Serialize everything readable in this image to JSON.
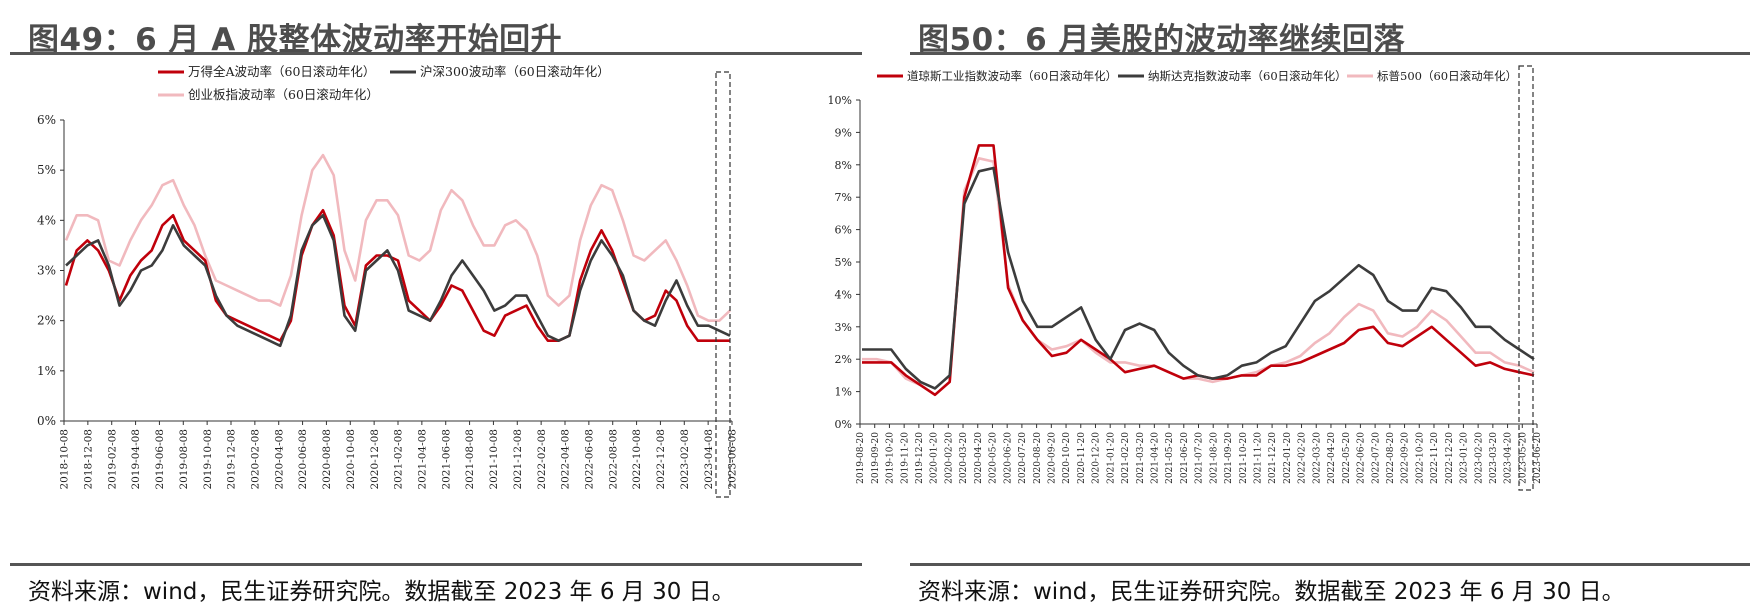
{
  "colors": {
    "red": "#c0000b",
    "dark": "#3c3c3c",
    "pink": "#f1b9be",
    "rule": "#555555"
  },
  "left": {
    "title": "图49：6 月 A 股整体波动率开始回升",
    "source": "资料来源：wind，民生证券研究院。数据截至 2023 年 6 月 30 日。",
    "chart_data": {
      "type": "line",
      "title": "",
      "xlabel": "",
      "ylabel": "",
      "ylim": [
        0,
        6
      ],
      "grid": false,
      "legend_position": "top",
      "y_ticks": [
        "0%",
        "1%",
        "2%",
        "3%",
        "4%",
        "5%",
        "6%"
      ],
      "x_tick_labels": [
        "2018-10-08",
        "2018-12-08",
        "2019-02-08",
        "2019-04-08",
        "2019-06-08",
        "2019-08-08",
        "2019-10-08",
        "2019-12-08",
        "2020-02-08",
        "2020-04-08",
        "2020-06-08",
        "2020-08-08",
        "2020-10-08",
        "2020-12-08",
        "2021-02-08",
        "2021-04-08",
        "2021-06-08",
        "2021-08-08",
        "2021-10-08",
        "2021-12-08",
        "2022-02-08",
        "2022-04-08",
        "2022-06-08",
        "2022-08-08",
        "2022-10-08",
        "2022-12-08",
        "2023-02-08",
        "2023-04-08",
        "2023-06-08"
      ],
      "highlight": "2023-06",
      "series": [
        {
          "name": "万得全A波动率（60日滚动年化）",
          "color_key": "red",
          "values": [
            2.7,
            3.4,
            3.6,
            3.4,
            3.0,
            2.4,
            2.9,
            3.2,
            3.4,
            3.9,
            4.1,
            3.6,
            3.4,
            3.2,
            2.4,
            2.1,
            2.0,
            1.9,
            1.8,
            1.7,
            1.6,
            2.0,
            3.3,
            3.9,
            4.2,
            3.7,
            2.3,
            1.9,
            3.1,
            3.3,
            3.3,
            3.2,
            2.4,
            2.2,
            2.0,
            2.3,
            2.7,
            2.6,
            2.2,
            1.8,
            1.7,
            2.1,
            2.2,
            2.3,
            1.9,
            1.6,
            1.6,
            1.7,
            2.8,
            3.4,
            3.8,
            3.4,
            2.8,
            2.2,
            2.0,
            2.1,
            2.6,
            2.4,
            1.9,
            1.6,
            1.6,
            1.6,
            1.6
          ]
        },
        {
          "name": "沪深300波动率（60日滚动年化）",
          "color_key": "dark",
          "values": [
            3.1,
            3.3,
            3.5,
            3.6,
            3.1,
            2.3,
            2.6,
            3.0,
            3.1,
            3.4,
            3.9,
            3.5,
            3.3,
            3.1,
            2.5,
            2.1,
            1.9,
            1.8,
            1.7,
            1.6,
            1.5,
            2.1,
            3.4,
            3.9,
            4.1,
            3.6,
            2.1,
            1.8,
            3.0,
            3.2,
            3.4,
            3.0,
            2.2,
            2.1,
            2.0,
            2.4,
            2.9,
            3.2,
            2.9,
            2.6,
            2.2,
            2.3,
            2.5,
            2.5,
            2.1,
            1.7,
            1.6,
            1.7,
            2.6,
            3.2,
            3.6,
            3.3,
            2.9,
            2.2,
            2.0,
            1.9,
            2.4,
            2.8,
            2.3,
            1.9,
            1.9,
            1.8,
            1.7
          ]
        },
        {
          "name": "创业板指波动率（60日滚动年化）",
          "color_key": "pink",
          "values": [
            3.6,
            4.1,
            4.1,
            4.0,
            3.2,
            3.1,
            3.6,
            4.0,
            4.3,
            4.7,
            4.8,
            4.3,
            3.9,
            3.3,
            2.8,
            2.7,
            2.6,
            2.5,
            2.4,
            2.4,
            2.3,
            2.9,
            4.1,
            5.0,
            5.3,
            4.9,
            3.4,
            2.8,
            4.0,
            4.4,
            4.4,
            4.1,
            3.3,
            3.2,
            3.4,
            4.2,
            4.6,
            4.4,
            3.9,
            3.5,
            3.5,
            3.9,
            4.0,
            3.8,
            3.3,
            2.5,
            2.3,
            2.5,
            3.6,
            4.3,
            4.7,
            4.6,
            4.0,
            3.3,
            3.2,
            3.4,
            3.6,
            3.2,
            2.7,
            2.1,
            2.0,
            2.0,
            2.2
          ]
        }
      ]
    }
  },
  "right": {
    "title": "图50：6 月美股的波动率继续回落",
    "source": "资料来源：wind，民生证券研究院。数据截至 2023 年 6 月 30 日。",
    "chart_data": {
      "type": "line",
      "title": "",
      "xlabel": "",
      "ylabel": "",
      "ylim": [
        0,
        10
      ],
      "grid": false,
      "legend_position": "top",
      "y_ticks": [
        "0%",
        "1%",
        "2%",
        "3%",
        "4%",
        "5%",
        "6%",
        "7%",
        "8%",
        "9%",
        "10%"
      ],
      "x_tick_labels": [
        "2019-08-20",
        "2019-09-20",
        "2019-10-20",
        "2019-11-20",
        "2019-12-20",
        "2020-01-20",
        "2020-02-20",
        "2020-03-20",
        "2020-04-20",
        "2020-05-20",
        "2020-06-20",
        "2020-07-20",
        "2020-08-20",
        "2020-09-20",
        "2020-10-20",
        "2020-11-20",
        "2020-12-20",
        "2021-01-20",
        "2021-02-20",
        "2021-03-20",
        "2021-04-20",
        "2021-05-20",
        "2021-06-20",
        "2021-07-20",
        "2021-08-20",
        "2021-09-20",
        "2021-10-20",
        "2021-11-20",
        "2021-12-20",
        "2022-01-20",
        "2022-02-20",
        "2022-03-20",
        "2022-04-20",
        "2022-05-20",
        "2022-06-20",
        "2022-07-20",
        "2022-08-20",
        "2022-09-20",
        "2022-10-20",
        "2022-11-20",
        "2022-12-20",
        "2023-01-20",
        "2023-02-20",
        "2023-03-20",
        "2023-04-20",
        "2023-05-20",
        "2023-06-20"
      ],
      "highlight": "2023-06",
      "series": [
        {
          "name": "道琼斯工业指数波动率（60日滚动年化）",
          "color_key": "red",
          "values": [
            1.9,
            1.9,
            1.9,
            1.5,
            1.2,
            0.9,
            1.3,
            7.0,
            8.6,
            8.6,
            4.2,
            3.2,
            2.6,
            2.1,
            2.2,
            2.6,
            2.3,
            2.0,
            1.6,
            1.7,
            1.8,
            1.6,
            1.4,
            1.5,
            1.4,
            1.4,
            1.5,
            1.5,
            1.8,
            1.8,
            1.9,
            2.1,
            2.3,
            2.5,
            2.9,
            3.0,
            2.5,
            2.4,
            2.7,
            3.0,
            2.6,
            2.2,
            1.8,
            1.9,
            1.7,
            1.6,
            1.5
          ]
        },
        {
          "name": "纳斯达克指数波动率（60日滚动年化）",
          "color_key": "dark",
          "values": [
            2.3,
            2.3,
            2.3,
            1.7,
            1.3,
            1.1,
            1.5,
            6.8,
            7.8,
            7.9,
            5.3,
            3.8,
            3.0,
            3.0,
            3.3,
            3.6,
            2.6,
            2.0,
            2.9,
            3.1,
            2.9,
            2.2,
            1.8,
            1.5,
            1.4,
            1.5,
            1.8,
            1.9,
            2.2,
            2.4,
            3.1,
            3.8,
            4.1,
            4.5,
            4.9,
            4.6,
            3.8,
            3.5,
            3.5,
            4.2,
            4.1,
            3.6,
            3.0,
            3.0,
            2.6,
            2.3,
            2.0
          ]
        },
        {
          "name": "标普500（60日滚动年化）",
          "color_key": "pink",
          "values": [
            2.0,
            2.0,
            1.9,
            1.4,
            1.2,
            0.9,
            1.3,
            7.2,
            8.2,
            8.1,
            4.3,
            3.2,
            2.6,
            2.3,
            2.4,
            2.6,
            2.2,
            1.9,
            1.9,
            1.8,
            1.8,
            1.6,
            1.4,
            1.4,
            1.3,
            1.4,
            1.5,
            1.6,
            1.8,
            1.9,
            2.1,
            2.5,
            2.8,
            3.3,
            3.7,
            3.5,
            2.8,
            2.7,
            3.0,
            3.5,
            3.2,
            2.7,
            2.2,
            2.2,
            1.9,
            1.8,
            1.6
          ]
        }
      ]
    }
  }
}
